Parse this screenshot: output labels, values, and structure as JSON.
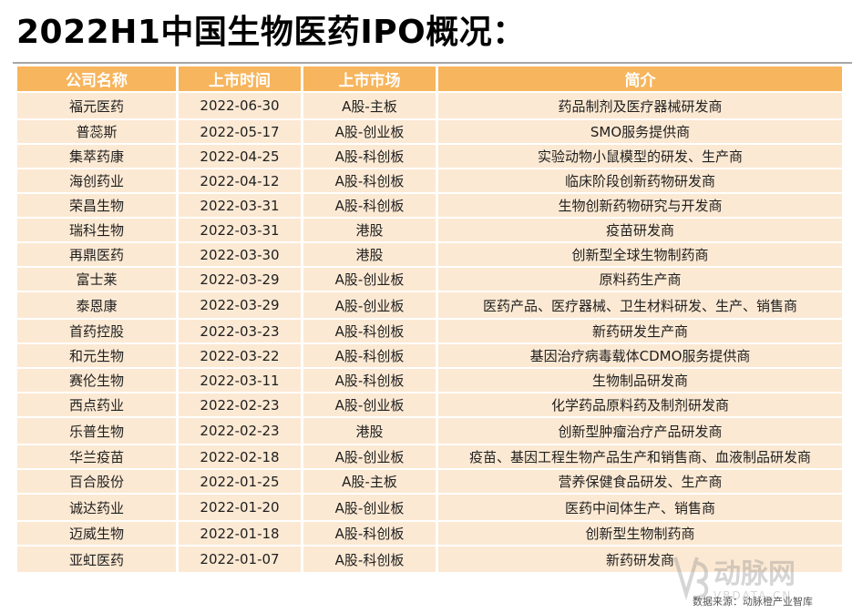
{
  "title": "2022H1中国生物医药IPO概况：",
  "table": {
    "headers": [
      "公司名称",
      "上市时间",
      "上市市场",
      "简介"
    ],
    "rows": [
      [
        "福元医药",
        "2022-06-30",
        "A股-主板",
        "药品制剂及医疗器械研发商"
      ],
      [
        "普蕊斯",
        "2022-05-17",
        "A股-创业板",
        "SMO服务提供商"
      ],
      [
        "集萃药康",
        "2022-04-25",
        "A股-科创板",
        "实验动物小鼠模型的研发、生产商"
      ],
      [
        "海创药业",
        "2022-04-12",
        "A股-科创板",
        "临床阶段创新药物研发商"
      ],
      [
        "荣昌生物",
        "2022-03-31",
        "A股-科创板",
        "生物创新药物研究与开发商"
      ],
      [
        "瑞科生物",
        "2022-03-31",
        "港股",
        "疫苗研发商"
      ],
      [
        "再鼎医药",
        "2022-03-30",
        "港股",
        "创新型全球生物制药商"
      ],
      [
        "富士莱",
        "2022-03-29",
        "A股-创业板",
        "原料药生产商"
      ],
      [
        "泰恩康",
        "2022-03-29",
        "A股-创业板",
        "医药产品、医疗器械、卫生材料研发、生产、销售商"
      ],
      [
        "首药控股",
        "2022-03-23",
        "A股-科创板",
        "新药研发生产商"
      ],
      [
        "和元生物",
        "2022-03-22",
        "A股-科创板",
        "基因治疗病毒载体CDMO服务提供商"
      ],
      [
        "赛伦生物",
        "2022-03-11",
        "A股-科创板",
        "生物制品研发商"
      ],
      [
        "西点药业",
        "2022-02-23",
        "A股-创业板",
        "化学药品原料药及制剂研发商"
      ],
      [
        "乐普生物",
        "2022-02-23",
        "港股",
        "创新型肿瘤治疗产品研发商"
      ],
      [
        "华兰疫苗",
        "2022-02-18",
        "A股-创业板",
        "疫苗、基因工程生物产品生产和销售商、血液制品研发商"
      ],
      [
        "百合股份",
        "2022-01-25",
        "A股-主板",
        "营养保健食品研发、生产商"
      ],
      [
        "诚达药业",
        "2022-01-20",
        "A股-创业板",
        "医药中间体生产、销售商"
      ],
      [
        "迈威生物",
        "2022-01-18",
        "A股-科创板",
        "创新型生物制药商"
      ],
      [
        "亚虹医药",
        "2022-01-07",
        "A股-科创板",
        "新药研发商"
      ]
    ]
  },
  "source": "数据来源：动脉橙产业智库",
  "watermark": {
    "logo_text": "动脉网",
    "url_text": "VBDATA.CN",
    "color": "#8a8a8a"
  },
  "colors": {
    "header_bg": "#f7b55e",
    "cell_bg": "#fce9d3"
  }
}
